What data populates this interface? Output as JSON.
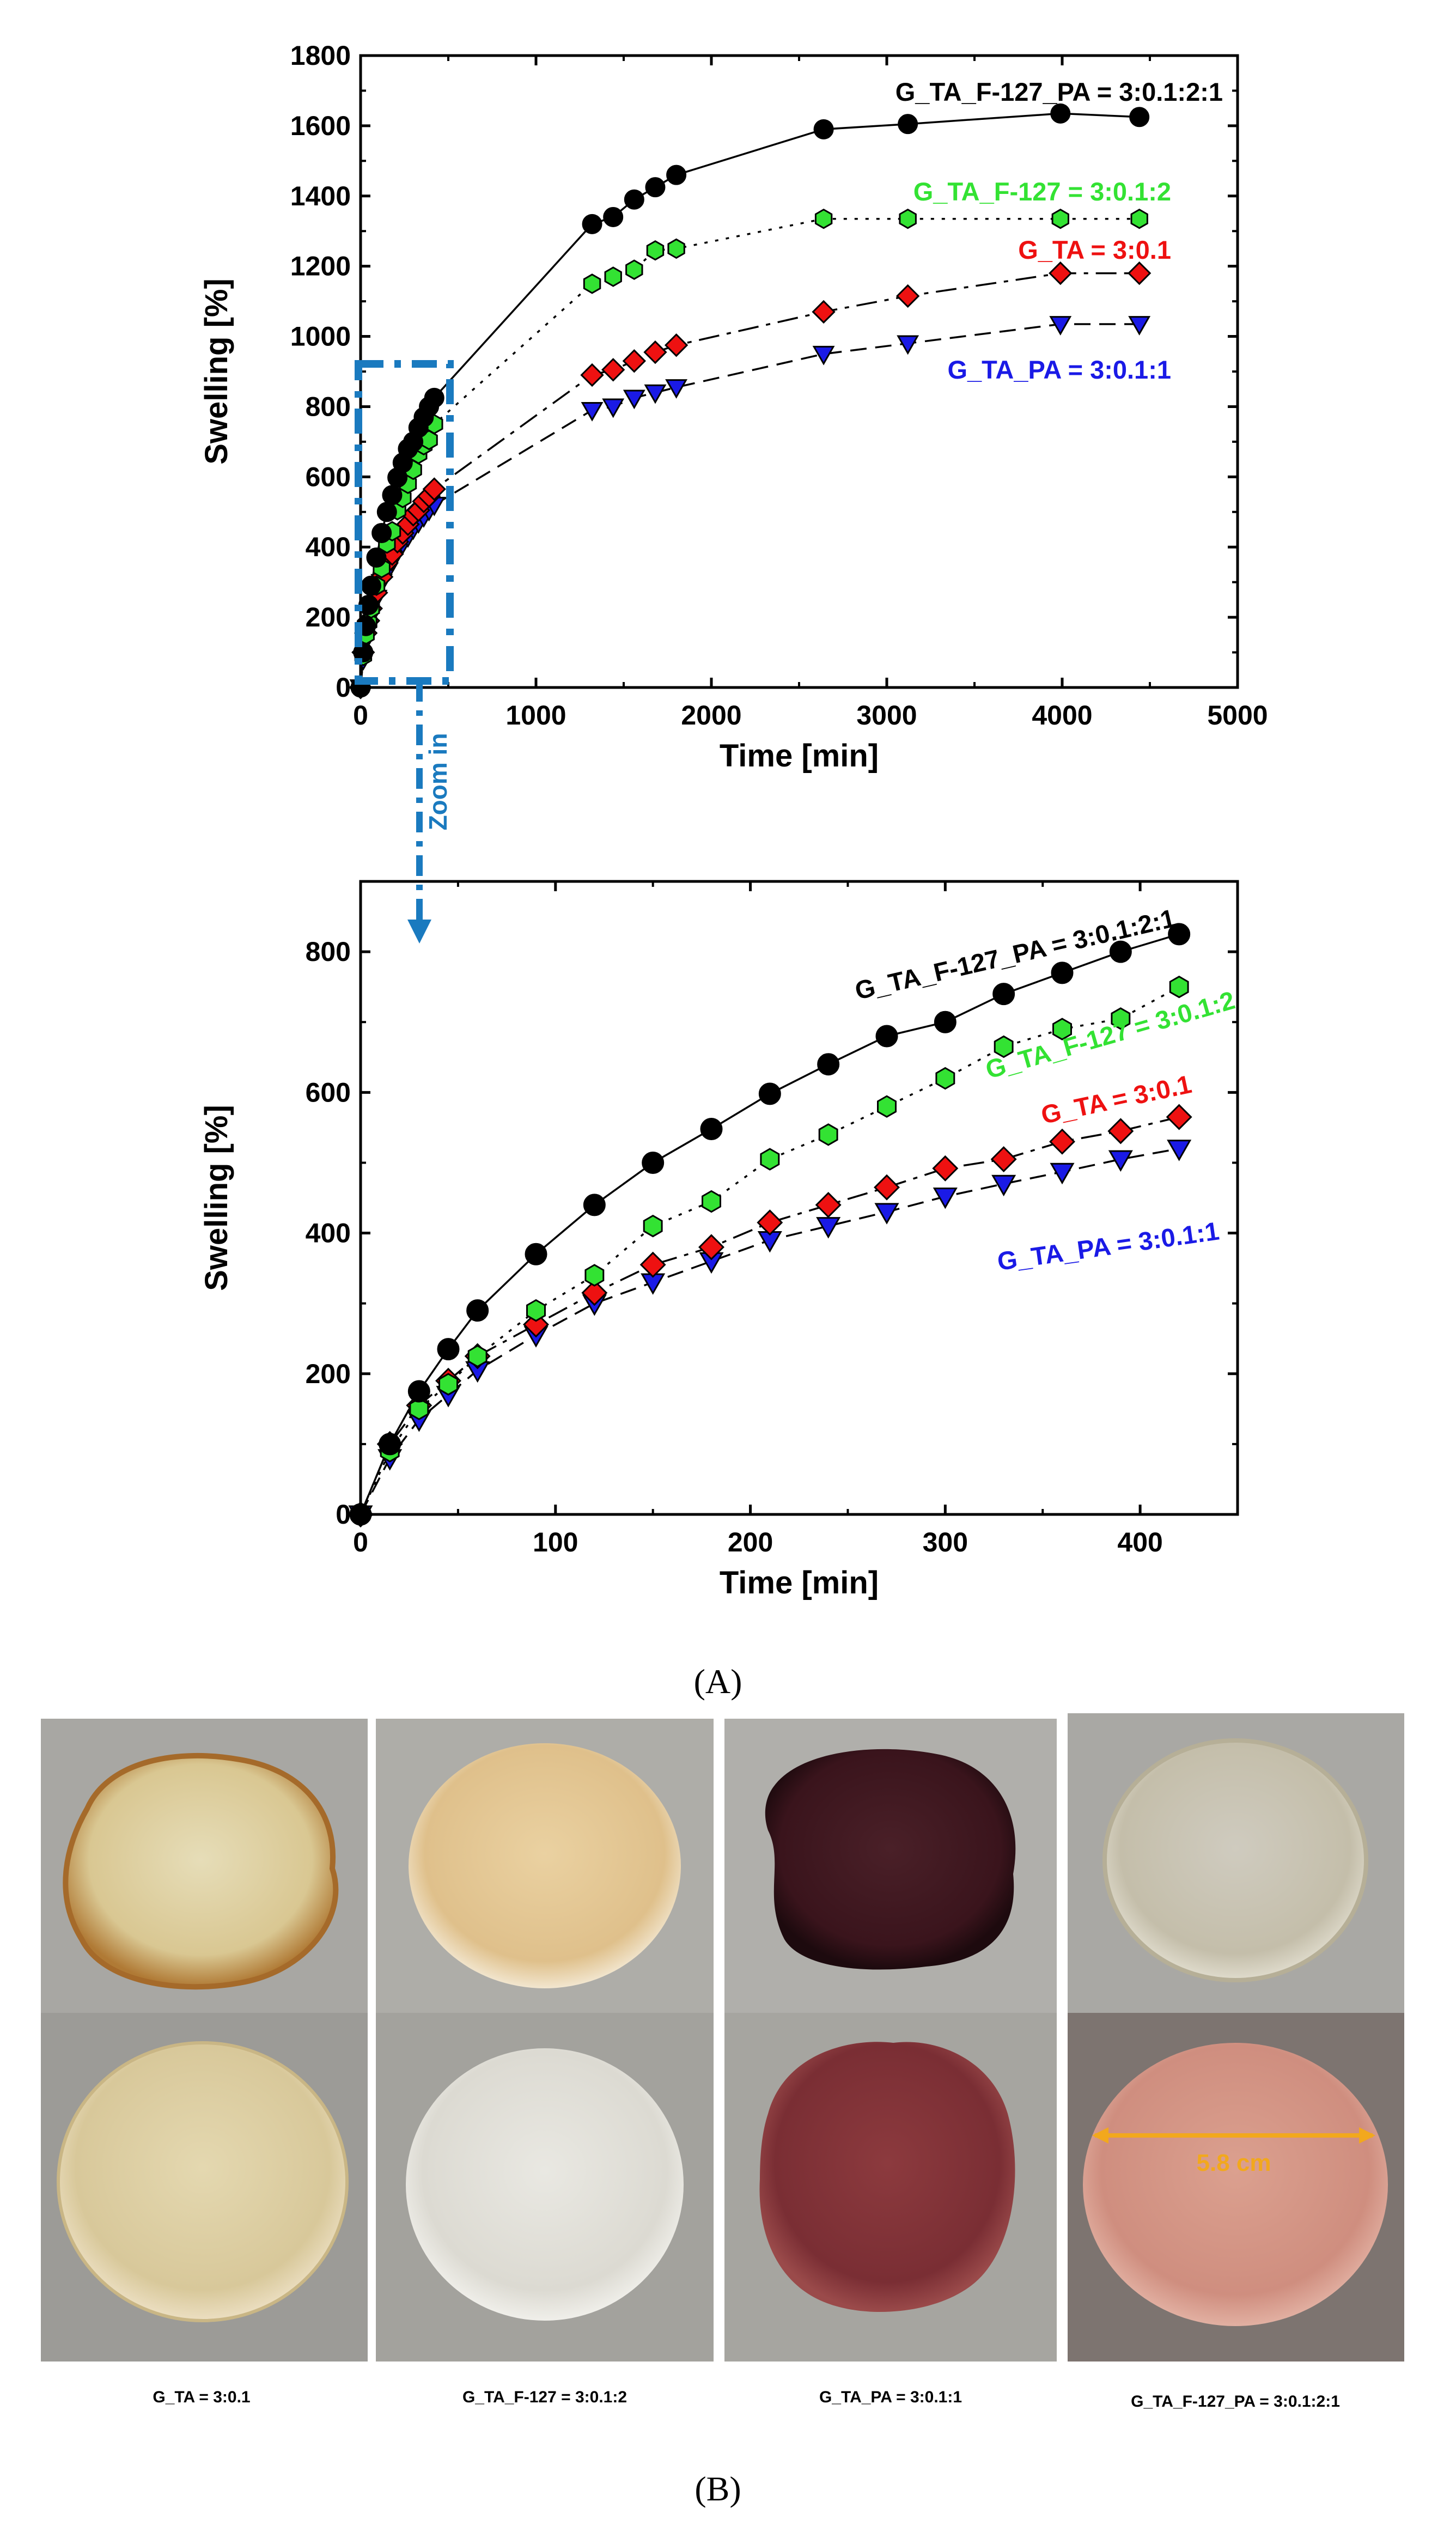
{
  "chart_data": [
    {
      "type": "line",
      "id": "overview",
      "xlabel": "Time [min]",
      "ylabel": "Swelling [%]",
      "xlim": [
        0,
        5000
      ],
      "ylim": [
        0,
        1800
      ],
      "xticks": [
        0,
        1000,
        2000,
        3000,
        4000,
        5000
      ],
      "yticks": [
        0,
        200,
        400,
        600,
        800,
        1000,
        1200,
        1400,
        1600,
        1800
      ],
      "series": [
        {
          "name": "G_TA_F-127_PA = 3:0.1:2:1",
          "color": "#000000",
          "marker": "circle",
          "x": [
            0,
            15,
            30,
            45,
            60,
            90,
            120,
            150,
            180,
            210,
            240,
            270,
            300,
            330,
            360,
            390,
            420,
            1320,
            1440,
            1560,
            1680,
            1800,
            2640,
            3120,
            3990,
            4440
          ],
          "y": [
            0,
            100,
            175,
            235,
            290,
            370,
            440,
            500,
            548,
            598,
            640,
            680,
            700,
            740,
            770,
            800,
            825,
            1320,
            1340,
            1390,
            1425,
            1460,
            1590,
            1605,
            1635,
            1625
          ]
        },
        {
          "name": "G_TA_F-127 = 3:0.1:2",
          "color": "#33e233",
          "marker": "hexagon",
          "x": [
            0,
            15,
            30,
            45,
            60,
            90,
            120,
            150,
            180,
            210,
            240,
            270,
            300,
            330,
            360,
            390,
            420,
            1320,
            1440,
            1560,
            1680,
            1800,
            2640,
            3120,
            3990,
            4440
          ],
          "y": [
            0,
            90,
            150,
            185,
            225,
            290,
            340,
            410,
            445,
            505,
            540,
            580,
            620,
            665,
            690,
            705,
            750,
            1150,
            1170,
            1190,
            1245,
            1250,
            1335,
            1335,
            1335,
            1335
          ]
        },
        {
          "name": "G_TA = 3:0.1",
          "color": "#ee1111",
          "marker": "diamond",
          "x": [
            0,
            15,
            30,
            45,
            60,
            90,
            120,
            150,
            180,
            210,
            240,
            270,
            300,
            330,
            360,
            390,
            420,
            1320,
            1440,
            1560,
            1680,
            1800,
            2640,
            3120,
            3990,
            4440
          ],
          "y": [
            0,
            100,
            155,
            190,
            225,
            270,
            315,
            355,
            380,
            415,
            440,
            465,
            492,
            505,
            530,
            545,
            565,
            890,
            905,
            930,
            955,
            975,
            1070,
            1115,
            1180,
            1180
          ]
        },
        {
          "name": "G_TA_PA = 3:0.1:1",
          "color": "#1a1ae6",
          "marker": "triangle-down",
          "x": [
            0,
            15,
            30,
            45,
            60,
            90,
            120,
            150,
            180,
            210,
            240,
            270,
            300,
            330,
            360,
            390,
            420,
            1320,
            1440,
            1560,
            1680,
            1800,
            2640,
            3120,
            3990,
            4440
          ],
          "y": [
            0,
            80,
            135,
            170,
            205,
            255,
            300,
            330,
            360,
            390,
            410,
            430,
            452,
            470,
            487,
            505,
            520,
            790,
            800,
            825,
            840,
            855,
            950,
            980,
            1035,
            1035
          ]
        }
      ]
    },
    {
      "type": "line",
      "id": "zoom",
      "xlabel": "Time [min]",
      "ylabel": "Swelling [%]",
      "xlim": [
        0,
        450
      ],
      "ylim": [
        0,
        900
      ],
      "xticks": [
        0,
        100,
        200,
        300,
        400
      ],
      "yticks": [
        0,
        200,
        400,
        600,
        800
      ],
      "series_ref": "same data as overview, points up to 420 min"
    }
  ],
  "labels": {
    "overview": [
      "G_TA_F-127_PA = 3:0.1:2:1",
      "G_TA_F-127 = 3:0.1:2",
      "G_TA = 3:0.1",
      "G_TA_PA = 3:0.1:1"
    ],
    "zoom": [
      "G_TA_F-127_PA = 3:0.1:2:1",
      "G_TA_F-127 = 3:0.1:2",
      "G_TA = 3:0.1",
      "G_TA_PA = 3:0.1:1"
    ]
  },
  "zoom_text": "Zoom in",
  "panel_a": "(A)",
  "panel_b": "(B)",
  "photo_captions": [
    "G_TA = 3:0.1",
    "G_TA_F-127 = 3:0.1:2",
    "G_TA_PA = 3:0.1:1",
    "G_TA_F-127_PA = 3:0.1:2:1"
  ],
  "scale_bar": "5.8 cm",
  "colors": {
    "black": "#000000",
    "green": "#33e233",
    "red": "#ee1111",
    "blue": "#1a1ae6",
    "zoom": "#1a7abf",
    "scale": "#f2a81d"
  }
}
